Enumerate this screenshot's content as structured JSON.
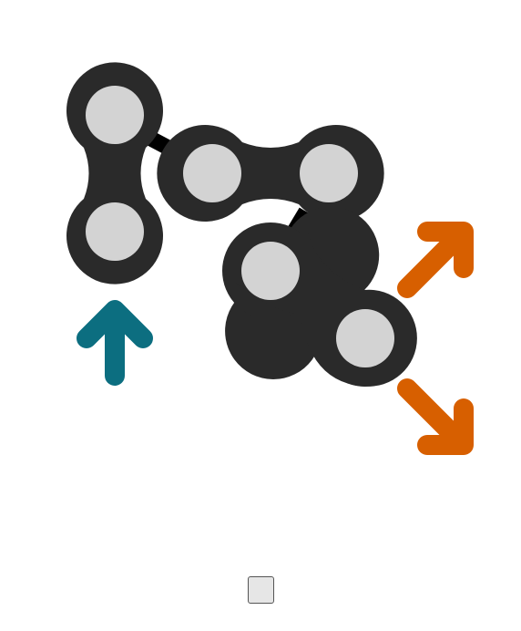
{
  "puzzle": {
    "colors": {
      "piece_body": "#2a2a2a",
      "hole": "#d3d3d3",
      "link": "#000000",
      "arrow_up": "#0c6e80",
      "arrow_diagonal": "#d75f00",
      "background": "#ffffff"
    },
    "pieces": [
      {
        "name": "vertical-link-piece",
        "orientation": "vertical",
        "holes": 2
      },
      {
        "name": "horizontal-link-piece",
        "orientation": "horizontal",
        "holes": 2
      },
      {
        "name": "diagonal-link-piece",
        "orientation": "diagonal",
        "holes": 2
      }
    ],
    "arrows": [
      {
        "name": "up-arrow-icon",
        "direction": "up",
        "color": "#0c6e80"
      },
      {
        "name": "up-right-arrow-icon",
        "direction": "up-right",
        "color": "#d75f00"
      },
      {
        "name": "down-right-arrow-icon",
        "direction": "down-right",
        "color": "#d75f00"
      }
    ]
  },
  "controls": {
    "check_button_label": ""
  }
}
